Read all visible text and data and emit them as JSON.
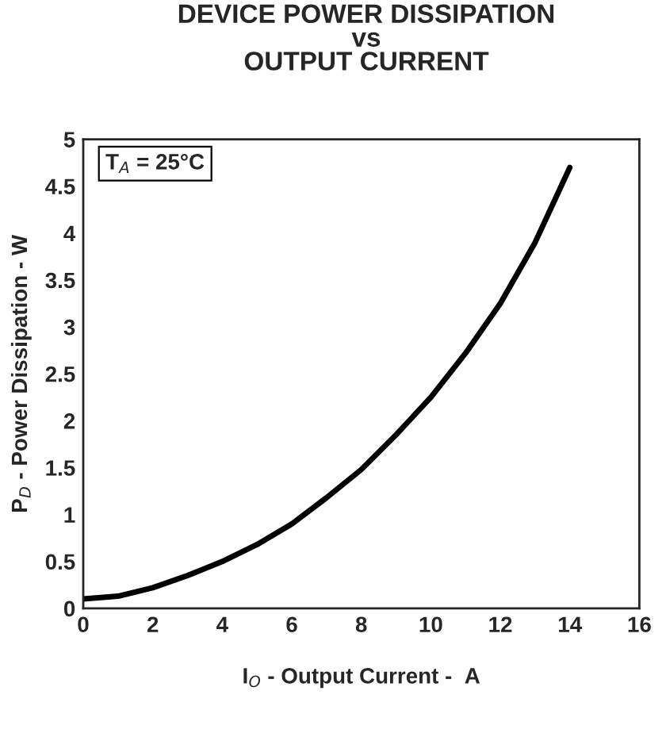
{
  "chart_data": {
    "type": "line",
    "title": "DEVICE POWER DISSIPATION\nvs\nOUTPUT CURRENT",
    "xlabel": "I$_{O}$ - Output Current -  A",
    "ylabel": "P$_{D}$ - Power Dissipation - W",
    "annotations": [
      "T$_{A}$ = 25°C"
    ],
    "series": [
      {
        "color": "#000000",
        "x": [
          0,
          1,
          2,
          3,
          4,
          5,
          6,
          7,
          8,
          9,
          10,
          11,
          12,
          13,
          14
        ],
        "values": [
          0.1,
          0.13,
          0.22,
          0.35,
          0.5,
          0.68,
          0.9,
          1.18,
          1.48,
          1.85,
          2.25,
          2.72,
          3.25,
          3.9,
          4.7
        ]
      }
    ],
    "xlim": [
      0,
      16
    ],
    "xticks": [
      0,
      2,
      4,
      6,
      8,
      10,
      12,
      14,
      16
    ],
    "ylim": [
      0,
      5
    ],
    "yticks": [
      0,
      0.5,
      1,
      1.5,
      2,
      2.5,
      3,
      3.5,
      4,
      4.5,
      5
    ],
    "grid": false,
    "legend": false,
    "marker": "none",
    "line_style": "solid"
  }
}
